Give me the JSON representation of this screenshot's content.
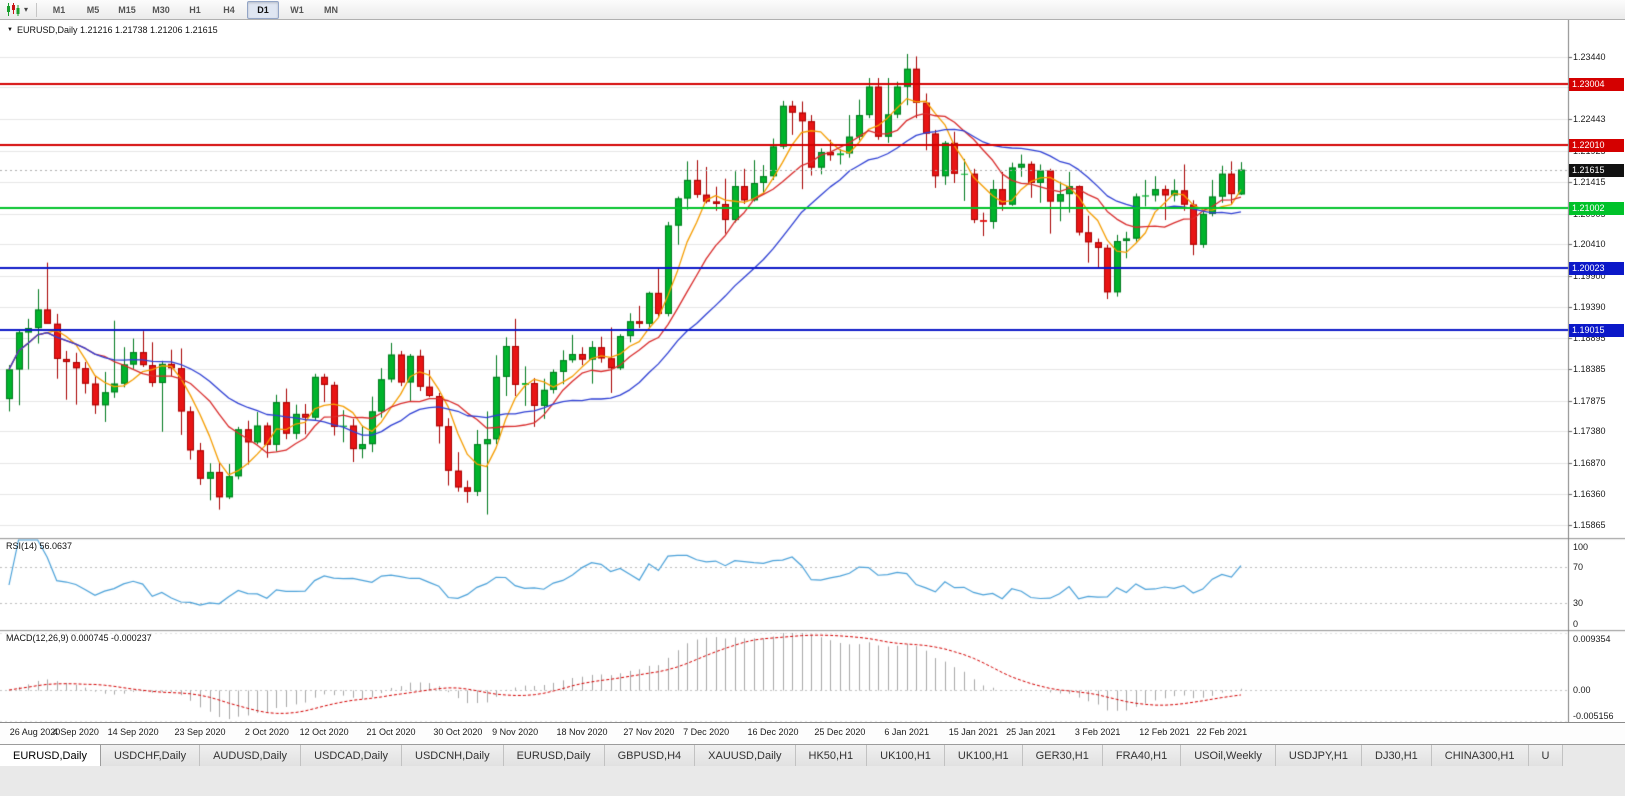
{
  "toolbar": {
    "timeframes": [
      "M1",
      "M5",
      "M15",
      "M30",
      "H1",
      "H4",
      "D1",
      "W1",
      "MN"
    ],
    "active_timeframe": "D1",
    "icons": [
      "candlestick-chart-icon",
      "dropdown-caret-icon",
      "down-triangle-icon"
    ]
  },
  "chart": {
    "title": "EURUSD,Daily 1.21216 1.21738 1.21206 1.21615",
    "symbol": "EURUSD",
    "period": "Daily",
    "current_price": {
      "label": "1.21615",
      "value": 1.21615,
      "badge_color": "#111111"
    },
    "price_axis_labels": [
      "1.23440",
      "1.22950",
      "1.22443",
      "1.21925",
      "1.21415",
      "1.20905",
      "1.20410",
      "1.19900",
      "1.19390",
      "1.18895",
      "1.18385",
      "1.17875",
      "1.17380",
      "1.16870",
      "1.16360",
      "1.15865"
    ]
  },
  "indicators": {
    "rsi": {
      "label": "RSI(14) 56.0637",
      "value": 56.0637,
      "period": 14,
      "line_color": "#4aa1d9",
      "levels": [
        70,
        30
      ],
      "axis_labels": [
        {
          "text": "100",
          "value": 100
        },
        {
          "text": "70",
          "value": 70
        },
        {
          "text": "30",
          "value": 30
        },
        {
          "text": "0",
          "value": 0
        }
      ]
    },
    "macd": {
      "label": "MACD(12,26,9) 0.000745 -0.000237",
      "main_value": 0.000745,
      "signal_value": -0.000237,
      "params": [
        12,
        26,
        9
      ],
      "histogram_color": "#a8a8a8",
      "signal_color": "#d40000",
      "axis_labels": [
        {
          "text": "0.009354",
          "value": 0.009354
        },
        {
          "text": "0.00",
          "value": 0
        },
        {
          "text": "-0.005156",
          "value": -0.005156
        }
      ]
    }
  },
  "time_axis": {
    "labels": [
      {
        "index": 0,
        "text": "26 Aug 2020"
      },
      {
        "index": 7,
        "text": "4 Sep 2020"
      },
      {
        "index": 13,
        "text": "14 Sep 2020"
      },
      {
        "index": 20,
        "text": "23 Sep 2020"
      },
      {
        "index": 27,
        "text": "2 Oct 2020"
      },
      {
        "index": 33,
        "text": "12 Oct 2020"
      },
      {
        "index": 40,
        "text": "21 Oct 2020"
      },
      {
        "index": 47,
        "text": "30 Oct 2020"
      },
      {
        "index": 53,
        "text": "9 Nov 2020"
      },
      {
        "index": 60,
        "text": "18 Nov 2020"
      },
      {
        "index": 67,
        "text": "27 Nov 2020"
      },
      {
        "index": 73,
        "text": "7 Dec 2020"
      },
      {
        "index": 80,
        "text": "16 Dec 2020"
      },
      {
        "index": 87,
        "text": "25 Dec 2020"
      },
      {
        "index": 94,
        "text": "6 Jan 2021"
      },
      {
        "index": 101,
        "text": "15 Jan 2021"
      },
      {
        "index": 107,
        "text": "25 Jan 2021"
      },
      {
        "index": 114,
        "text": "3 Feb 2021"
      },
      {
        "index": 121,
        "text": "12 Feb 2021"
      },
      {
        "index": 127,
        "text": "22 Feb 2021"
      }
    ]
  },
  "tabs": {
    "active_index": 0,
    "items": [
      "EURUSD,Daily",
      "USDCHF,Daily",
      "AUDUSD,Daily",
      "USDCAD,Daily",
      "USDCNH,Daily",
      "EURUSD,Daily",
      "GBPUSD,H4",
      "XAUUSD,Daily",
      "HK50,H1",
      "UK100,H1",
      "UK100,H1",
      "GER30,H1",
      "FRA40,H1",
      "USOil,Weekly",
      "USDJPY,H1",
      "DJ30,H1",
      "CHINA300,H1",
      "U"
    ]
  },
  "chart_data": {
    "type": "candlestick",
    "title": "EURUSD,Daily",
    "ylim": [
      1.1565,
      1.2404
    ],
    "up_color": "#00b42c",
    "up_border": "#007a1e",
    "down_color": "#e81414",
    "down_border": "#a80000",
    "grid_color": "#e6e6e6",
    "ohlc_current": {
      "open": 1.21216,
      "high": 1.21738,
      "low": 1.21206,
      "close": 1.21615
    },
    "moving_averages": [
      {
        "name": "MA fast",
        "period": 5,
        "color": "#f59d00"
      },
      {
        "name": "MA medium",
        "period": 10,
        "color": "#d92b2b"
      },
      {
        "name": "MA slow",
        "period": 20,
        "color": "#2e3fd4"
      }
    ],
    "horizontal_lines": [
      {
        "label": "1.23004",
        "value": 1.23004,
        "color": "#d40000"
      },
      {
        "label": "1.22010",
        "value": 1.2201,
        "color": "#d40000"
      },
      {
        "label": "1.21002",
        "value": 1.21002,
        "color": "#00c22a"
      },
      {
        "label": "1.20023",
        "value": 1.20023,
        "color": "#0b18c8"
      },
      {
        "label": "1.19015",
        "value": 1.19015,
        "color": "#0b18c8"
      }
    ],
    "macd_scale": {
      "max": 0.009354,
      "min": -0.005156
    },
    "candles": [
      [
        1.179,
        1.1845,
        1.177,
        1.1838
      ],
      [
        1.1838,
        1.1903,
        1.178,
        1.1898
      ],
      [
        1.1898,
        1.192,
        1.1838,
        1.1905
      ],
      [
        1.1905,
        1.1968,
        1.188,
        1.1935
      ],
      [
        1.1935,
        1.2011,
        1.1925,
        1.1912
      ],
      [
        1.1912,
        1.1928,
        1.1823,
        1.1855
      ],
      [
        1.1855,
        1.1868,
        1.1789,
        1.185
      ],
      [
        1.185,
        1.1865,
        1.1781,
        1.184
      ],
      [
        1.184,
        1.185,
        1.1799,
        1.1815
      ],
      [
        1.1815,
        1.1827,
        1.1766,
        1.178
      ],
      [
        1.178,
        1.1834,
        1.1753,
        1.1801
      ],
      [
        1.1801,
        1.1917,
        1.1792,
        1.1815
      ],
      [
        1.1815,
        1.1874,
        1.1809,
        1.1846
      ],
      [
        1.1846,
        1.1888,
        1.1839,
        1.1866
      ],
      [
        1.1866,
        1.19,
        1.1842,
        1.1845
      ],
      [
        1.1845,
        1.1882,
        1.181,
        1.1816
      ],
      [
        1.1816,
        1.1852,
        1.1737,
        1.1847
      ],
      [
        1.1847,
        1.187,
        1.1827,
        1.184
      ],
      [
        1.184,
        1.1872,
        1.1732,
        1.177
      ],
      [
        1.177,
        1.1778,
        1.1692,
        1.1707
      ],
      [
        1.1707,
        1.1719,
        1.1651,
        1.1661
      ],
      [
        1.1661,
        1.1686,
        1.1626,
        1.1672
      ],
      [
        1.1672,
        1.1688,
        1.1611,
        1.1631
      ],
      [
        1.1631,
        1.1685,
        1.1628,
        1.1665
      ],
      [
        1.1665,
        1.1745,
        1.166,
        1.1741
      ],
      [
        1.1741,
        1.1755,
        1.1684,
        1.172
      ],
      [
        1.172,
        1.1769,
        1.1717,
        1.1747
      ],
      [
        1.1747,
        1.1752,
        1.1695,
        1.1716
      ],
      [
        1.1716,
        1.1797,
        1.1705,
        1.1785
      ],
      [
        1.1785,
        1.1807,
        1.1725,
        1.1734
      ],
      [
        1.1734,
        1.1781,
        1.1725,
        1.1766
      ],
      [
        1.1766,
        1.1782,
        1.1733,
        1.176
      ],
      [
        1.176,
        1.1831,
        1.1755,
        1.1826
      ],
      [
        1.1826,
        1.1831,
        1.1785,
        1.1813
      ],
      [
        1.1813,
        1.1818,
        1.1731,
        1.1745
      ],
      [
        1.1745,
        1.1772,
        1.172,
        1.1747
      ],
      [
        1.1747,
        1.1758,
        1.1688,
        1.1709
      ],
      [
        1.1709,
        1.1747,
        1.1694,
        1.1717
      ],
      [
        1.1717,
        1.1794,
        1.1704,
        1.177
      ],
      [
        1.177,
        1.184,
        1.176,
        1.1822
      ],
      [
        1.1822,
        1.1881,
        1.1817,
        1.1862
      ],
      [
        1.1862,
        1.1868,
        1.1811,
        1.1817
      ],
      [
        1.1817,
        1.1863,
        1.1787,
        1.186
      ],
      [
        1.186,
        1.187,
        1.1803,
        1.181
      ],
      [
        1.181,
        1.1837,
        1.1793,
        1.1795
      ],
      [
        1.1795,
        1.18,
        1.1718,
        1.1746
      ],
      [
        1.1746,
        1.1759,
        1.165,
        1.1674
      ],
      [
        1.1674,
        1.1704,
        1.164,
        1.1647
      ],
      [
        1.1647,
        1.1658,
        1.1622,
        1.164
      ],
      [
        1.164,
        1.174,
        1.1633,
        1.1717
      ],
      [
        1.1717,
        1.177,
        1.1603,
        1.1725
      ],
      [
        1.1725,
        1.1861,
        1.1717,
        1.1826
      ],
      [
        1.1826,
        1.189,
        1.1795,
        1.1876
      ],
      [
        1.1876,
        1.192,
        1.1795,
        1.1813
      ],
      [
        1.1813,
        1.1843,
        1.1779,
        1.1816
      ],
      [
        1.1816,
        1.1824,
        1.1745,
        1.1779
      ],
      [
        1.1779,
        1.1823,
        1.1758,
        1.1805
      ],
      [
        1.1805,
        1.1838,
        1.1799,
        1.1834
      ],
      [
        1.1834,
        1.1869,
        1.1814,
        1.1853
      ],
      [
        1.1853,
        1.1894,
        1.1849,
        1.1863
      ],
      [
        1.1863,
        1.1874,
        1.1845,
        1.1854
      ],
      [
        1.1854,
        1.1884,
        1.1815,
        1.1874
      ],
      [
        1.1874,
        1.1891,
        1.1849,
        1.1856
      ],
      [
        1.1856,
        1.1906,
        1.18,
        1.184
      ],
      [
        1.184,
        1.1895,
        1.1837,
        1.1892
      ],
      [
        1.1892,
        1.1929,
        1.1882,
        1.1916
      ],
      [
        1.1916,
        1.1941,
        1.1905,
        1.1912
      ],
      [
        1.1912,
        1.1964,
        1.1906,
        1.1962
      ],
      [
        1.1962,
        1.2003,
        1.1923,
        1.1928
      ],
      [
        1.1928,
        1.2077,
        1.1924,
        1.2071
      ],
      [
        1.2071,
        1.2118,
        1.204,
        1.2115
      ],
      [
        1.2115,
        1.2175,
        1.2097,
        1.2145
      ],
      [
        1.2145,
        1.2177,
        1.2116,
        1.2121
      ],
      [
        1.2121,
        1.2166,
        1.2107,
        1.211
      ],
      [
        1.211,
        1.2134,
        1.2095,
        1.2106
      ],
      [
        1.2106,
        1.2147,
        1.2058,
        1.208
      ],
      [
        1.208,
        1.2159,
        1.2076,
        1.2135
      ],
      [
        1.2135,
        1.2163,
        1.2106,
        1.2112
      ],
      [
        1.2112,
        1.2177,
        1.211,
        1.214
      ],
      [
        1.214,
        1.2169,
        1.2123,
        1.2151
      ],
      [
        1.2151,
        1.2212,
        1.2145,
        1.2199
      ],
      [
        1.2199,
        1.2273,
        1.2195,
        1.2265
      ],
      [
        1.2265,
        1.2273,
        1.2218,
        1.2254
      ],
      [
        1.2254,
        1.2272,
        1.213,
        1.224
      ],
      [
        1.224,
        1.225,
        1.2152,
        1.2165
      ],
      [
        1.2165,
        1.2196,
        1.2154,
        1.219
      ],
      [
        1.219,
        1.221,
        1.2176,
        1.2185
      ],
      [
        1.2185,
        1.2195,
        1.217,
        1.2188
      ],
      [
        1.2188,
        1.225,
        1.2181,
        1.2215
      ],
      [
        1.2215,
        1.2275,
        1.2209,
        1.225
      ],
      [
        1.225,
        1.231,
        1.2245,
        1.2296
      ],
      [
        1.2296,
        1.231,
        1.221,
        1.2215
      ],
      [
        1.2215,
        1.231,
        1.2205,
        1.2251
      ],
      [
        1.2251,
        1.2304,
        1.2245,
        1.2296
      ],
      [
        1.2296,
        1.2349,
        1.2266,
        1.2325
      ],
      [
        1.2325,
        1.2345,
        1.2245,
        1.227
      ],
      [
        1.227,
        1.2285,
        1.2193,
        1.222
      ],
      [
        1.222,
        1.2226,
        1.2132,
        1.2151
      ],
      [
        1.2151,
        1.2208,
        1.2137,
        1.2205
      ],
      [
        1.2205,
        1.2223,
        1.214,
        1.2155
      ],
      [
        1.2155,
        1.2179,
        1.2111,
        1.2155
      ],
      [
        1.2155,
        1.2163,
        1.2075,
        1.208
      ],
      [
        1.208,
        1.2092,
        1.2054,
        1.2077
      ],
      [
        1.2077,
        1.2145,
        1.2066,
        1.213
      ],
      [
        1.213,
        1.2158,
        1.2095,
        1.2105
      ],
      [
        1.2105,
        1.2173,
        1.2103,
        1.2165
      ],
      [
        1.2165,
        1.2186,
        1.215,
        1.2171
      ],
      [
        1.2171,
        1.2175,
        1.2116,
        1.214
      ],
      [
        1.214,
        1.217,
        1.2108,
        1.216
      ],
      [
        1.216,
        1.2163,
        1.2058,
        1.211
      ],
      [
        1.211,
        1.2142,
        1.2078,
        1.2122
      ],
      [
        1.2122,
        1.2158,
        1.2092,
        1.2135
      ],
      [
        1.2135,
        1.2136,
        1.2055,
        1.206
      ],
      [
        1.206,
        1.2087,
        1.2011,
        1.2044
      ],
      [
        1.2044,
        1.205,
        1.2002,
        1.2035
      ],
      [
        1.2035,
        1.204,
        1.1952,
        1.1963
      ],
      [
        1.1963,
        1.2056,
        1.1956,
        1.2046
      ],
      [
        1.2046,
        1.2061,
        1.2018,
        1.205
      ],
      [
        1.205,
        1.2123,
        1.2045,
        1.2118
      ],
      [
        1.2118,
        1.2145,
        1.2102,
        1.212
      ],
      [
        1.212,
        1.2151,
        1.211,
        1.213
      ],
      [
        1.213,
        1.2136,
        1.208,
        1.212
      ],
      [
        1.212,
        1.2146,
        1.211,
        1.2128
      ],
      [
        1.2128,
        1.217,
        1.2095,
        1.2105
      ],
      [
        1.2105,
        1.2112,
        1.2023,
        1.204
      ],
      [
        1.204,
        1.2093,
        1.2035,
        1.209
      ],
      [
        1.209,
        1.2145,
        1.2086,
        1.2118
      ],
      [
        1.2118,
        1.2168,
        1.2108,
        1.2155
      ],
      [
        1.2155,
        1.2175,
        1.2105,
        1.2122
      ],
      [
        1.21216,
        1.21738,
        1.21206,
        1.21615
      ]
    ]
  }
}
